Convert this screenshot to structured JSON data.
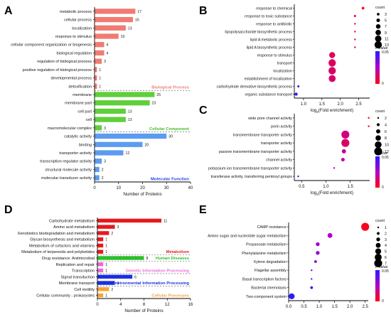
{
  "chart_data": [
    {
      "panel": "A",
      "type": "bar",
      "orientation": "horizontal",
      "xlabel": "Number of Proteins",
      "xlim": [
        0,
        40
      ],
      "xticks": [
        0,
        10,
        20,
        30,
        40
      ],
      "groups": [
        {
          "name": "Biological Process",
          "color": "#f07b72",
          "categories": [
            "metabolic process",
            "cellular process",
            "localization",
            "response to stimulus",
            "cellular component organization or biogenesis",
            "biological regulation",
            "regulation of biological process",
            "positive regulation of biological process",
            "developmental process",
            "detoxification"
          ],
          "values": [
            17,
            16,
            13,
            10,
            4,
            4,
            3,
            1,
            1,
            1
          ]
        },
        {
          "name": "Cellular Component",
          "color": "#5fcf3a",
          "categories": [
            "membrane",
            "membrane part",
            "cell part",
            "cell",
            "macromolecular complex"
          ],
          "values": [
            25,
            23,
            13,
            13,
            3
          ]
        },
        {
          "name": "Molecular Function",
          "color": "#5c9cf0",
          "categories": [
            "catalytic activity",
            "binding",
            "transporter activity",
            "transcription regulator activity",
            "structural molecule activity",
            "molecular transducer activity"
          ],
          "values": [
            30,
            20,
            12,
            3,
            2,
            2
          ]
        }
      ]
    },
    {
      "panel": "B",
      "type": "scatter",
      "xlabel": "log₂(Fold enrichment)",
      "xlim": [
        0.75,
        2.8
      ],
      "xticks": [
        "1.0",
        "1.5",
        "2.0",
        "2.5"
      ],
      "categories": [
        "response to chemical",
        "response to toxic substance",
        "response to antibiotic",
        "lipopolysaccharide biosynthetic process",
        "lipid A metabolic process",
        "lipid A biosynthetic process",
        "response to stimulus",
        "transport",
        "localization",
        "establishment of localization",
        "carbohydrate derivative biosynthetic process",
        "organic substance transport"
      ],
      "x": [
        2.62,
        2.4,
        2.4,
        2.4,
        2.4,
        2.4,
        1.78,
        1.78,
        1.78,
        1.78,
        0.86,
        0.8
      ],
      "count": [
        3,
        2,
        1,
        1,
        1,
        1,
        10,
        13,
        13,
        12,
        2,
        4
      ],
      "p": [
        0.003,
        0.01,
        0.01,
        0.01,
        0.01,
        0.01,
        0.01,
        0.01,
        0.012,
        0.012,
        0.05,
        0.045
      ],
      "size_legend": {
        "title": "count",
        "values": [
          "3",
          "5",
          "7",
          "9",
          "11",
          "13"
        ]
      },
      "color_legend": {
        "title": "P value",
        "max": "0.05",
        "min": "0"
      }
    },
    {
      "panel": "C",
      "type": "scatter",
      "xlabel": "log₂(Fold enrichment)",
      "xlim": [
        0.35,
        1.9
      ],
      "xticks": [
        "0.5",
        "1.0",
        "1.5"
      ],
      "categories": [
        "wide pore channel activity",
        "porin activity",
        "transmembrane transporter activity",
        "transporter activity",
        "passive transmembrane transporter activity",
        "channel activity",
        "potassium ion transmembrane transporter activity",
        "transferase activity, transferring pentosyl groups"
      ],
      "x": [
        1.88,
        1.88,
        1.4,
        1.4,
        1.37,
        1.35,
        1.17,
        0.43
      ],
      "count": [
        2,
        2,
        12,
        12,
        6,
        5,
        2,
        2
      ],
      "p": [
        0.002,
        0.002,
        0.015,
        0.012,
        0.018,
        0.02,
        0.025,
        0.05
      ],
      "size_legend": {
        "title": "count",
        "values": [
          "2",
          "4",
          "6",
          "8",
          "10",
          "12"
        ]
      },
      "color_legend": {
        "title": "P value",
        "max": "0.05",
        "min": "0"
      }
    },
    {
      "panel": "D",
      "type": "bar",
      "orientation": "horizontal",
      "xlabel": "Number of Proteins",
      "xlim": [
        0,
        16
      ],
      "xticks": [
        0,
        4,
        8,
        12,
        16
      ],
      "groups": [
        {
          "name": "Metabolism",
          "color": "#e8191c",
          "categories": [
            "Carbohydrate metabolism",
            "Amino acid metabolism",
            "Xenobiotics biodegradation and metabolism",
            "Glycan biosynthesis and metabolism",
            "Metabolism of cofactors and vitamins",
            "Metabolism of terpenoids and polyketides"
          ],
          "values": [
            11,
            3,
            2,
            1,
            1,
            1
          ]
        },
        {
          "name": "Human Diseases",
          "color": "#2cbf2c",
          "categories": [
            "Drug resistance: Antimicrobial"
          ],
          "values": [
            8
          ]
        },
        {
          "name": "Genetic Information Processing",
          "color": "#e96ad8",
          "categories": [
            "Replication and repair",
            "Transcription"
          ],
          "values": [
            1,
            1
          ]
        },
        {
          "name": "Environmental Information Processing",
          "color": "#1a2fe0",
          "categories": [
            "Signal transduction",
            "Membrane transport"
          ],
          "values": [
            6,
            3
          ]
        },
        {
          "name": "Cellular Processes",
          "color": "#f5a333",
          "categories": [
            "Cell motility",
            "Cellular community - prokaryotes"
          ],
          "values": [
            2,
            1
          ]
        }
      ]
    },
    {
      "panel": "E",
      "type": "scatter",
      "xlabel": "",
      "xlim": [
        0.0,
        2.6
      ],
      "xticks": [
        "0.0",
        "0.5",
        "1.0",
        "1.5",
        "2.0",
        "2.5"
      ],
      "categories": [
        "CAMP resistance",
        "Amino sugar and nucleotide sugar metabolism",
        "Propanoate metabolism",
        "Phenylalanine metabolism",
        "Xylene degradation",
        "Flagellar assembly",
        "Basal transcription factors",
        "Bacterial chemotaxis",
        "Two-component system"
      ],
      "x": [
        2.5,
        1.35,
        0.95,
        0.95,
        0.88,
        0.75,
        0.75,
        0.75,
        0.1
      ],
      "count": [
        7,
        4,
        3,
        3,
        2,
        1,
        1,
        2,
        5
      ],
      "p": [
        0.002,
        0.025,
        0.03,
        0.03,
        0.032,
        0.038,
        0.04,
        0.045,
        0.05
      ],
      "size_legend": {
        "title": "count",
        "values": [
          "1",
          "2",
          "3",
          "4",
          "5",
          "6",
          "7"
        ]
      },
      "color_legend": {
        "title": "P value",
        "max": "0.05",
        "min": "0"
      }
    }
  ]
}
